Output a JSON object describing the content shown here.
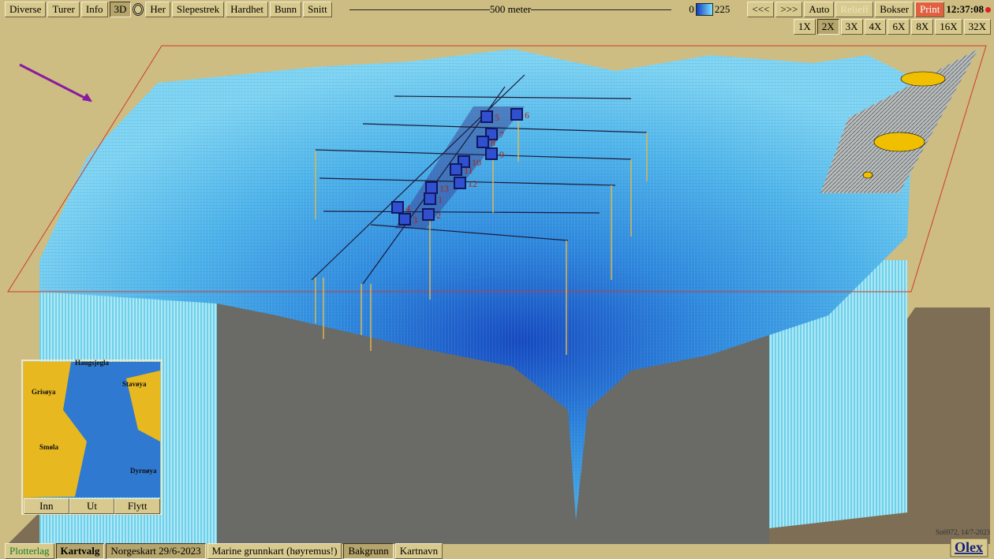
{
  "toolbar": {
    "left_buttons": [
      "Diverse",
      "Turer",
      "Info",
      "3D"
    ],
    "mode_buttons": [
      "Her",
      "Slepestrek",
      "Hardhet",
      "Bunn",
      "Snitt"
    ],
    "scale": "500 meter",
    "depth_min": 0,
    "depth_max": 225,
    "right_buttons": [
      "<<<",
      ">>>",
      "Auto",
      "Relieff",
      "Bokser",
      "Print"
    ],
    "clock": "12:37:08"
  },
  "zoom": [
    "1X",
    "2X",
    "3X",
    "4X",
    "6X",
    "8X",
    "16X",
    "32X"
  ],
  "markers": [
    "1",
    "2",
    "3",
    "4",
    "5",
    "6",
    "7",
    "8",
    "9",
    "10",
    "11",
    "12",
    "13"
  ],
  "minimap": {
    "places": [
      "Haugsjegla",
      "Smøla",
      "Stavøya",
      "Dyrnøya",
      "Grisøya"
    ],
    "buttons": [
      "Inn",
      "Ut",
      "Flytt"
    ]
  },
  "bottom_bar": {
    "items": [
      "Plotterlag",
      "Kartvalg",
      "Norgeskart 29/6-2023",
      "Marine grunnkart (høyremus!)",
      "Bakgrunn",
      "Kartnavn"
    ]
  },
  "footer": {
    "stamp": "Sn6972, 14/7-2023",
    "brand": "Olex"
  }
}
